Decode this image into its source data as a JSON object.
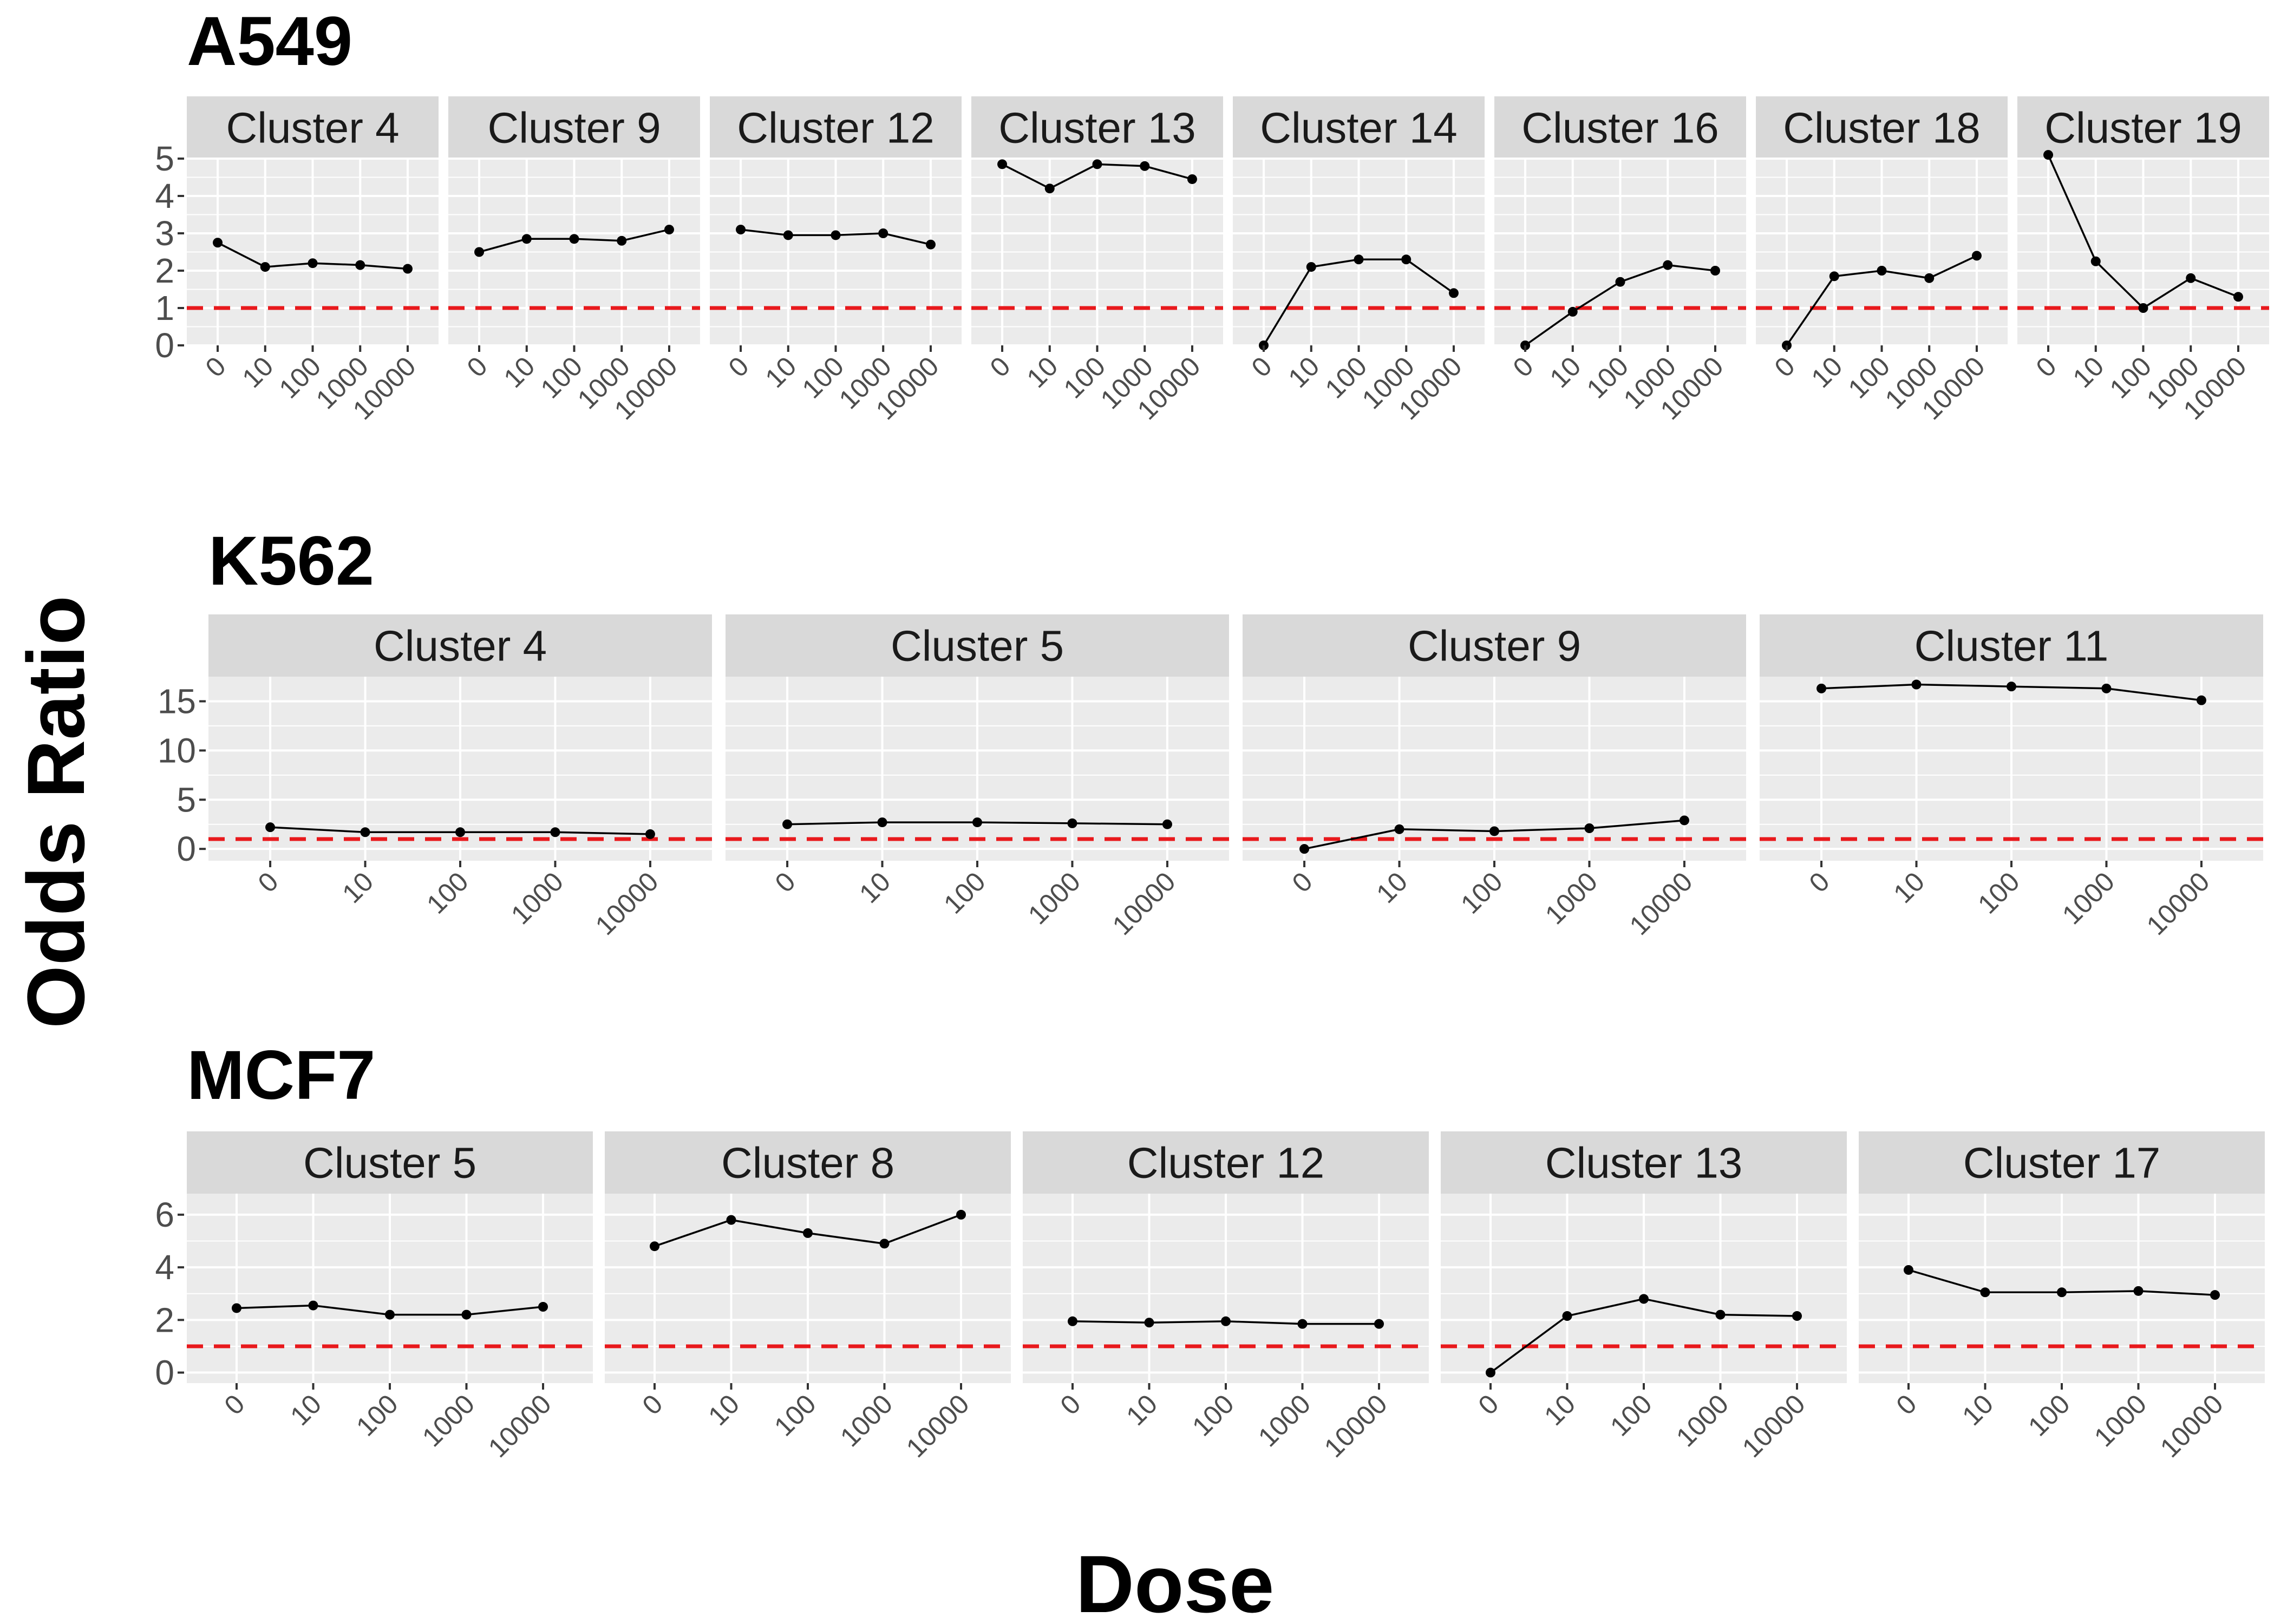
{
  "figure": {
    "xlabel": "Dose",
    "ylabel": "Odds Ratio"
  },
  "chart_data": [
    {
      "type": "line",
      "title": "A549",
      "ylim": [
        0,
        5
      ],
      "y_ticks": [
        0,
        1,
        2,
        3,
        4,
        5
      ],
      "reference_line": {
        "y": 1,
        "color": "#e8191c",
        "style": "dashed"
      },
      "facets": [
        {
          "label": "Cluster 4",
          "x": [
            "0",
            "10",
            "100",
            "1000",
            "10000"
          ],
          "values": [
            2.75,
            2.1,
            2.2,
            2.15,
            2.05
          ]
        },
        {
          "label": "Cluster 9",
          "x": [
            "0",
            "10",
            "100",
            "1000",
            "10000"
          ],
          "values": [
            2.5,
            2.85,
            2.85,
            2.8,
            3.1
          ]
        },
        {
          "label": "Cluster 12",
          "x": [
            "0",
            "10",
            "100",
            "1000",
            "10000"
          ],
          "values": [
            3.1,
            2.95,
            2.95,
            3.0,
            2.7
          ]
        },
        {
          "label": "Cluster 13",
          "x": [
            "0",
            "10",
            "100",
            "1000",
            "10000"
          ],
          "values": [
            4.85,
            4.2,
            4.85,
            4.8,
            4.45
          ]
        },
        {
          "label": "Cluster 14",
          "x": [
            "0",
            "10",
            "100",
            "1000",
            "10000"
          ],
          "values": [
            0,
            2.1,
            2.3,
            2.3,
            1.4
          ]
        },
        {
          "label": "Cluster 16",
          "x": [
            "0",
            "10",
            "100",
            "1000",
            "10000"
          ],
          "values": [
            0,
            0.9,
            1.7,
            2.15,
            2.0
          ]
        },
        {
          "label": "Cluster 18",
          "x": [
            "0",
            "10",
            "100",
            "1000",
            "10000"
          ],
          "values": [
            0,
            1.85,
            2.0,
            1.8,
            2.4
          ]
        },
        {
          "label": "Cluster 19",
          "x": [
            "0",
            "10",
            "100",
            "1000",
            "10000"
          ],
          "values": [
            5.1,
            2.25,
            1.0,
            1.8,
            1.3
          ]
        }
      ]
    },
    {
      "type": "line",
      "title": "K562",
      "ylim": [
        -1.2,
        17.5
      ],
      "y_ticks": [
        0,
        5,
        10,
        15
      ],
      "reference_line": {
        "y": 1,
        "color": "#e8191c",
        "style": "dashed"
      },
      "facets": [
        {
          "label": "Cluster 4",
          "x": [
            "0",
            "10",
            "100",
            "1000",
            "10000"
          ],
          "values": [
            2.2,
            1.7,
            1.7,
            1.7,
            1.5
          ]
        },
        {
          "label": "Cluster 5",
          "x": [
            "0",
            "10",
            "100",
            "1000",
            "10000"
          ],
          "values": [
            2.5,
            2.7,
            2.7,
            2.6,
            2.5
          ]
        },
        {
          "label": "Cluster 9",
          "x": [
            "0",
            "10",
            "100",
            "1000",
            "10000"
          ],
          "values": [
            0,
            2.0,
            1.8,
            2.1,
            2.9
          ]
        },
        {
          "label": "Cluster 11",
          "x": [
            "0",
            "10",
            "100",
            "1000",
            "10000"
          ],
          "values": [
            16.3,
            16.7,
            16.5,
            16.3,
            15.1
          ]
        }
      ]
    },
    {
      "type": "line",
      "title": "MCF7",
      "ylim": [
        -0.4,
        6.8
      ],
      "y_ticks": [
        0,
        2,
        4,
        6
      ],
      "reference_line": {
        "y": 1,
        "color": "#e8191c",
        "style": "dashed"
      },
      "facets": [
        {
          "label": "Cluster 5",
          "x": [
            "0",
            "10",
            "100",
            "1000",
            "10000"
          ],
          "values": [
            2.45,
            2.55,
            2.2,
            2.2,
            2.5
          ]
        },
        {
          "label": "Cluster 8",
          "x": [
            "0",
            "10",
            "100",
            "1000",
            "10000"
          ],
          "values": [
            4.8,
            5.8,
            5.3,
            4.9,
            6.0
          ]
        },
        {
          "label": "Cluster 12",
          "x": [
            "0",
            "10",
            "100",
            "1000",
            "10000"
          ],
          "values": [
            1.95,
            1.9,
            1.95,
            1.85,
            1.85
          ]
        },
        {
          "label": "Cluster 13",
          "x": [
            "0",
            "10",
            "100",
            "1000",
            "10000"
          ],
          "values": [
            0,
            2.15,
            2.8,
            2.2,
            2.15
          ]
        },
        {
          "label": "Cluster 17",
          "x": [
            "0",
            "10",
            "100",
            "1000",
            "10000"
          ],
          "values": [
            3.9,
            3.05,
            3.05,
            3.1,
            2.95
          ]
        }
      ]
    }
  ]
}
